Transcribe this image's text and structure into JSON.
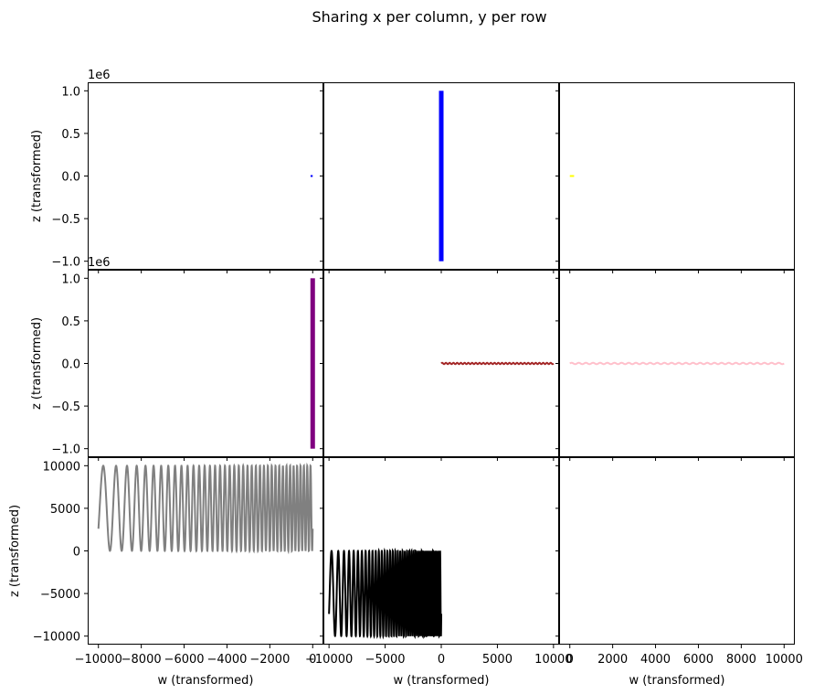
{
  "chart_data": {
    "type": "line",
    "title": "Sharing x per column, y per row",
    "xlabel": "w (transformed)",
    "ylabel": "z (transformed)",
    "grid": false,
    "columns": [
      {
        "xlim": [
          -10500,
          500
        ],
        "xticks": [
          -10000,
          -8000,
          -6000,
          -4000,
          -2000,
          0
        ],
        "xtick_labels": [
          "−10000",
          "−8000",
          "−6000",
          "−4000",
          "−2000",
          "0"
        ]
      },
      {
        "xlim": [
          -10500,
          10500
        ],
        "xticks": [
          -10000,
          -5000,
          0,
          5000,
          10000
        ],
        "xtick_labels": [
          "−10000",
          "−5000",
          "0",
          "5000",
          "10000"
        ]
      },
      {
        "xlim": [
          -500,
          10500
        ],
        "xticks": [
          0,
          2000,
          4000,
          6000,
          8000,
          10000
        ],
        "xtick_labels": [
          "0",
          "2000",
          "4000",
          "6000",
          "8000",
          "10000"
        ]
      }
    ],
    "rows": [
      {
        "ylim": [
          -1.1,
          1.1
        ],
        "yticks": [
          -1.0,
          -0.5,
          0.0,
          0.5,
          1.0
        ],
        "ytick_labels": [
          "−1.0",
          "−0.5",
          "0.0",
          "0.5",
          "1.0"
        ],
        "offset_text": "1e6"
      },
      {
        "ylim": [
          -1.1,
          1.1
        ],
        "yticks": [
          -1.0,
          -0.5,
          0.0,
          0.5,
          1.0
        ],
        "ytick_labels": [
          "−1.0",
          "−0.5",
          "0.0",
          "0.5",
          "1.0"
        ],
        "offset_text": "1e6"
      },
      {
        "ylim": [
          -11000,
          11000
        ],
        "yticks": [
          -10000,
          -5000,
          0,
          5000,
          10000
        ],
        "ytick_labels": [
          "−10000",
          "−5000",
          "0",
          "5000",
          "10000"
        ],
        "offset_text": ""
      }
    ],
    "panels": [
      {
        "row": 0,
        "col": 0,
        "color": "#0000ff",
        "kind": "hseg",
        "x_range": [
          -100,
          0
        ],
        "y_value": 0,
        "note": "scale 1e6"
      },
      {
        "row": 0,
        "col": 1,
        "color": "#0000ff",
        "kind": "vband",
        "x_value": 0,
        "y_range": [
          -1.0,
          1.0
        ]
      },
      {
        "row": 0,
        "col": 2,
        "color": "#ffff00",
        "kind": "hseg",
        "x_range": [
          0,
          200
        ],
        "y_value": 0
      },
      {
        "row": 1,
        "col": 0,
        "color": "#800080",
        "kind": "vband",
        "x_value": 0,
        "y_range": [
          -1.0,
          1.0
        ]
      },
      {
        "row": 1,
        "col": 1,
        "color": "#a52a2a",
        "kind": "wave",
        "x_range": [
          0,
          10000
        ],
        "y_center": 0,
        "amp": 0.008,
        "cycles": 30
      },
      {
        "row": 1,
        "col": 2,
        "color": "#ffc0cb",
        "kind": "wave",
        "x_range": [
          0,
          10000
        ],
        "y_center": 0,
        "amp": 0.008,
        "cycles": 30
      },
      {
        "row": 2,
        "col": 0,
        "color": "#808080",
        "kind": "chirp",
        "x_range": [
          -10000,
          0
        ],
        "y_center": 5000,
        "amp": 5000,
        "phase": -0.5,
        "cycles": 40
      },
      {
        "row": 2,
        "col": 1,
        "color": "#000000",
        "kind": "chirp",
        "x_range": [
          -10000,
          0
        ],
        "y_center": -5000,
        "amp": 5000,
        "phase": -0.5,
        "cycles": 40
      },
      {
        "row": 2,
        "col": 2,
        "color": "#ffffff",
        "kind": "empty"
      }
    ]
  }
}
